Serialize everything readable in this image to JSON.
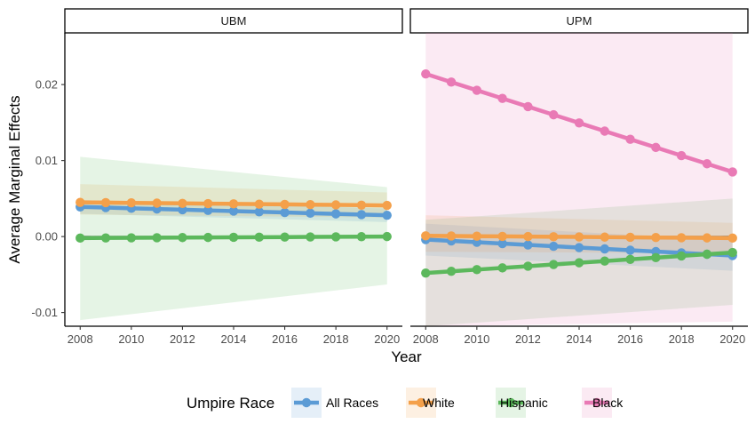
{
  "chart_data": {
    "type": "line",
    "xlabel": "Year",
    "ylabel": "Average Marginal Effects",
    "x": [
      2008,
      2009,
      2010,
      2011,
      2012,
      2013,
      2014,
      2015,
      2016,
      2017,
      2018,
      2019,
      2020
    ],
    "x_ticks": [
      2008,
      2010,
      2012,
      2014,
      2016,
      2018,
      2020
    ],
    "x_tick_labels": [
      "2008",
      "2010",
      "2012",
      "2014",
      "2016",
      "2018",
      "2020"
    ],
    "xlim": [
      2007.4,
      2020.6
    ],
    "y_ticks": [
      -0.01,
      0,
      0.01,
      0.02
    ],
    "y_tick_labels": [
      "-0.01",
      "0.00",
      "0.01",
      "0.02"
    ],
    "ylim": [
      -0.0118,
      0.0268
    ],
    "grid": false,
    "reference_line": 0,
    "legend": {
      "title": "Umpire Race",
      "position": "bottom",
      "entries": [
        "All Races",
        "White",
        "Hispanic",
        "Black"
      ]
    },
    "series_colors": {
      "All Races": "#5b9bd5",
      "White": "#f4a04a",
      "Hispanic": "#5cb85c",
      "Black": "#e97ab5"
    },
    "panels": [
      {
        "name": "UBM",
        "series": [
          {
            "name": "All Races",
            "start": 0.0039,
            "end": 0.0028,
            "ci_start": [
              0.003,
              0.0048
            ],
            "ci_end": [
              0.0019,
              0.0037
            ]
          },
          {
            "name": "White",
            "start": 0.0045,
            "end": 0.0041,
            "ci_start": [
              0.0029,
              0.0069
            ],
            "ci_end": [
              0.0025,
              0.0058
            ]
          },
          {
            "name": "Hispanic",
            "start": -0.0002,
            "end": 0.0,
            "ci_start": [
              -0.011,
              0.0105
            ],
            "ci_end": [
              -0.0063,
              0.0065
            ]
          }
        ]
      },
      {
        "name": "UPM",
        "series": [
          {
            "name": "All Races",
            "start": -0.0004,
            "end": -0.0025,
            "ci_start": [
              -0.0025,
              0.0017
            ],
            "ci_end": [
              -0.0045,
              -0.0005
            ]
          },
          {
            "name": "White",
            "start": 0.0001,
            "end": -0.0002,
            "ci_start": [
              -0.002,
              0.0028
            ],
            "ci_end": [
              -0.0022,
              0.0018
            ]
          },
          {
            "name": "Hispanic",
            "start": -0.0048,
            "end": -0.0021,
            "ci_start": [
              -0.0118,
              0.0022
            ],
            "ci_end": [
              -0.009,
              0.005
            ]
          },
          {
            "name": "Black",
            "start": 0.0214,
            "end": 0.0085,
            "ci_start": [
              -0.0118,
              0.0268
            ],
            "ci_end": [
              -0.0112,
              0.0268
            ]
          }
        ]
      }
    ]
  }
}
